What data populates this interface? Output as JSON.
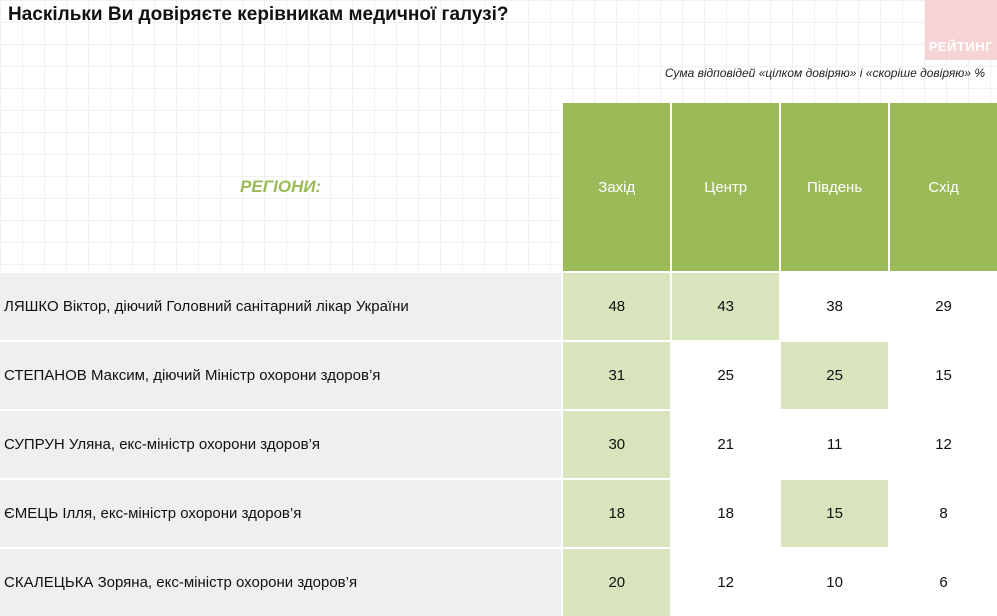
{
  "header": {
    "title": "Наскільки Ви довіряєте керівникам медичної галузі?",
    "subtitle": "Сума відповідей «цілком довіряю» і «скоріше довіряю» %",
    "logo_text": "РЕЙТИНГ"
  },
  "colors": {
    "header_green": "#9bbb59",
    "highlight_green": "#d8e4bc",
    "row_gray": "#efefef",
    "logo_pink": "#f7d4d4"
  },
  "chart_data": {
    "type": "table",
    "row_header_label": "РЕГІОНИ:",
    "columns": [
      "Захід",
      "Центр",
      "Південь",
      "Схід"
    ],
    "rows": [
      {
        "name": "ЛЯШКО Віктор, діючий Головний санітарний лікар України",
        "values": [
          48,
          43,
          38,
          29
        ],
        "highlight": [
          true,
          true,
          false,
          false
        ]
      },
      {
        "name": "СТЕПАНОВ Максим, діючий Міністр охорони здоров’я",
        "values": [
          31,
          25,
          25,
          15
        ],
        "highlight": [
          true,
          false,
          true,
          false
        ]
      },
      {
        "name": "СУПРУН Уляна, екс-міністр охорони здоров’я",
        "values": [
          30,
          21,
          11,
          12
        ],
        "highlight": [
          true,
          false,
          false,
          false
        ]
      },
      {
        "name": "ЄМЕЦЬ Ілля, екс-міністр охорони здоров’я",
        "values": [
          18,
          18,
          15,
          8
        ],
        "highlight": [
          true,
          false,
          true,
          false
        ]
      },
      {
        "name": "СКАЛЕЦЬКА Зоряна, екс-міністр охорони здоров’я",
        "values": [
          20,
          12,
          10,
          6
        ],
        "highlight": [
          true,
          false,
          false,
          false
        ]
      }
    ]
  }
}
